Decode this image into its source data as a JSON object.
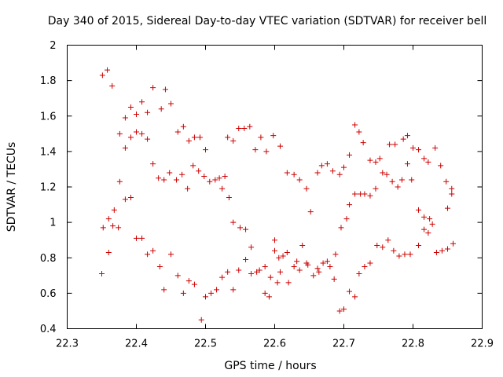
{
  "chart_data": {
    "type": "scatter",
    "title": "Day 340 of 2015, Sidereal Day-to-day VTEC variation (SDTVAR) for receiver bell",
    "xlabel": "GPS time / hours",
    "ylabel": "SDTVAR / TECUs",
    "xlim": [
      22.3,
      22.9
    ],
    "ylim": [
      0.4,
      2.0
    ],
    "xticks": [
      "22.3",
      "22.4",
      "22.5",
      "22.6",
      "22.7",
      "22.8",
      "22.9"
    ],
    "yticks": [
      "0.4",
      "0.6",
      "0.8",
      "1",
      "1.2",
      "1.4",
      "1.6",
      "1.8",
      "2"
    ],
    "marker": "plus",
    "color": "#cc0000",
    "grid": false,
    "series": [
      {
        "name": "SDTVAR",
        "points": [
          [
            22.351,
            1.83
          ],
          [
            22.358,
            1.86
          ],
          [
            22.365,
            1.77
          ],
          [
            22.376,
            1.5
          ],
          [
            22.384,
            1.59
          ],
          [
            22.392,
            1.65
          ],
          [
            22.4,
            1.61
          ],
          [
            22.408,
            1.68
          ],
          [
            22.416,
            1.62
          ],
          [
            22.424,
            1.76
          ],
          [
            22.436,
            1.64
          ],
          [
            22.442,
            1.75
          ],
          [
            22.45,
            1.67
          ],
          [
            22.46,
            1.51
          ],
          [
            22.468,
            1.54
          ],
          [
            22.476,
            1.46
          ],
          [
            22.484,
            1.48
          ],
          [
            22.492,
            1.48
          ],
          [
            22.5,
            1.41
          ],
          [
            22.384,
            1.42
          ],
          [
            22.392,
            1.48
          ],
          [
            22.4,
            1.51
          ],
          [
            22.408,
            1.5
          ],
          [
            22.416,
            1.47
          ],
          [
            22.424,
            1.33
          ],
          [
            22.432,
            1.25
          ],
          [
            22.44,
            1.24
          ],
          [
            22.448,
            1.28
          ],
          [
            22.458,
            1.24
          ],
          [
            22.466,
            1.27
          ],
          [
            22.474,
            1.19
          ],
          [
            22.482,
            1.32
          ],
          [
            22.49,
            1.29
          ],
          [
            22.498,
            1.26
          ],
          [
            22.506,
            1.23
          ],
          [
            22.514,
            1.24
          ],
          [
            22.52,
            1.25
          ],
          [
            22.524,
            1.19
          ],
          [
            22.528,
            1.26
          ],
          [
            22.534,
            1.14
          ],
          [
            22.376,
            1.23
          ],
          [
            22.384,
            1.13
          ],
          [
            22.392,
            1.14
          ],
          [
            22.368,
            1.07
          ],
          [
            22.36,
            1.02
          ],
          [
            22.352,
            0.97
          ],
          [
            22.366,
            0.98
          ],
          [
            22.374,
            0.97
          ],
          [
            22.4,
            0.91
          ],
          [
            22.408,
            0.91
          ],
          [
            22.416,
            0.82
          ],
          [
            22.424,
            0.84
          ],
          [
            22.434,
            0.75
          ],
          [
            22.44,
            0.62
          ],
          [
            22.45,
            0.82
          ],
          [
            22.46,
            0.7
          ],
          [
            22.468,
            0.6
          ],
          [
            22.476,
            0.67
          ],
          [
            22.484,
            0.65
          ],
          [
            22.494,
            0.45
          ],
          [
            22.5,
            0.58
          ],
          [
            22.508,
            0.6
          ],
          [
            22.516,
            0.62
          ],
          [
            22.524,
            0.69
          ],
          [
            22.532,
            0.72
          ],
          [
            22.54,
            0.62
          ],
          [
            22.35,
            0.71
          ],
          [
            22.36,
            0.83
          ],
          [
            22.532,
            1.48
          ],
          [
            22.54,
            1.46
          ],
          [
            22.548,
            1.53
          ],
          [
            22.556,
            1.53
          ],
          [
            22.564,
            1.54
          ],
          [
            22.572,
            1.41
          ],
          [
            22.58,
            1.48
          ],
          [
            22.588,
            1.4
          ],
          [
            22.598,
            1.49
          ],
          [
            22.608,
            1.43
          ],
          [
            22.54,
            1.0
          ],
          [
            22.55,
            0.97
          ],
          [
            22.558,
            0.96
          ],
          [
            22.548,
            0.73
          ],
          [
            22.558,
            0.79
          ],
          [
            22.566,
            0.86
          ],
          [
            22.566,
            0.71
          ],
          [
            22.574,
            0.72
          ],
          [
            22.578,
            0.73
          ],
          [
            22.586,
            0.6
          ],
          [
            22.586,
            0.75
          ],
          [
            22.592,
            0.58
          ],
          [
            22.594,
            0.69
          ],
          [
            22.6,
            0.9
          ],
          [
            22.6,
            0.84
          ],
          [
            22.604,
            0.66
          ],
          [
            22.606,
            0.8
          ],
          [
            22.608,
            0.72
          ],
          [
            22.612,
            0.81
          ],
          [
            22.618,
            0.83
          ],
          [
            22.62,
            0.66
          ],
          [
            22.628,
            0.75
          ],
          [
            22.632,
            0.78
          ],
          [
            22.636,
            0.73
          ],
          [
            22.64,
            0.87
          ],
          [
            22.646,
            0.77
          ],
          [
            22.648,
            0.76
          ],
          [
            22.656,
            0.7
          ],
          [
            22.662,
            0.74
          ],
          [
            22.664,
            0.72
          ],
          [
            22.67,
            0.77
          ],
          [
            22.676,
            0.78
          ],
          [
            22.68,
            0.75
          ],
          [
            22.686,
            0.68
          ],
          [
            22.688,
            0.82
          ],
          [
            22.694,
            0.5
          ],
          [
            22.7,
            0.51
          ],
          [
            22.708,
            0.61
          ],
          [
            22.716,
            0.58
          ],
          [
            22.722,
            0.71
          ],
          [
            22.73,
            0.75
          ],
          [
            22.738,
            0.77
          ],
          [
            22.618,
            1.28
          ],
          [
            22.628,
            1.27
          ],
          [
            22.636,
            1.24
          ],
          [
            22.646,
            1.19
          ],
          [
            22.652,
            1.06
          ],
          [
            22.662,
            1.28
          ],
          [
            22.668,
            1.32
          ],
          [
            22.676,
            1.33
          ],
          [
            22.684,
            1.29
          ],
          [
            22.694,
            1.27
          ],
          [
            22.7,
            1.31
          ],
          [
            22.704,
            1.02
          ],
          [
            22.708,
            1.1
          ],
          [
            22.708,
            1.38
          ],
          [
            22.696,
            0.97
          ],
          [
            22.716,
            1.55
          ],
          [
            22.722,
            1.51
          ],
          [
            22.728,
            1.45
          ],
          [
            22.716,
            1.16
          ],
          [
            22.724,
            1.16
          ],
          [
            22.73,
            1.16
          ],
          [
            22.738,
            1.15
          ],
          [
            22.738,
            1.35
          ],
          [
            22.746,
            1.34
          ],
          [
            22.746,
            1.19
          ],
          [
            22.752,
            1.36
          ],
          [
            22.756,
            1.28
          ],
          [
            22.762,
            1.27
          ],
          [
            22.766,
            1.44
          ],
          [
            22.77,
            1.23
          ],
          [
            22.774,
            1.44
          ],
          [
            22.778,
            1.2
          ],
          [
            22.784,
            1.24
          ],
          [
            22.786,
            1.47
          ],
          [
            22.792,
            1.49
          ],
          [
            22.792,
            1.33
          ],
          [
            22.798,
            1.24
          ],
          [
            22.8,
            1.42
          ],
          [
            22.808,
            1.41
          ],
          [
            22.808,
            1.07
          ],
          [
            22.816,
            1.36
          ],
          [
            22.816,
            1.03
          ],
          [
            22.822,
            1.34
          ],
          [
            22.824,
            1.02
          ],
          [
            22.832,
            1.42
          ],
          [
            22.84,
            1.32
          ],
          [
            22.848,
            1.23
          ],
          [
            22.856,
            1.19
          ],
          [
            22.856,
            1.16
          ],
          [
            22.85,
            1.08
          ],
          [
            22.748,
            0.87
          ],
          [
            22.756,
            0.86
          ],
          [
            22.764,
            0.9
          ],
          [
            22.772,
            0.84
          ],
          [
            22.78,
            0.81
          ],
          [
            22.788,
            0.82
          ],
          [
            22.796,
            0.82
          ],
          [
            22.808,
            0.87
          ],
          [
            22.816,
            0.96
          ],
          [
            22.822,
            0.94
          ],
          [
            22.828,
            0.99
          ],
          [
            22.834,
            0.83
          ],
          [
            22.842,
            0.84
          ],
          [
            22.85,
            0.85
          ],
          [
            22.858,
            0.88
          ]
        ]
      }
    ]
  }
}
